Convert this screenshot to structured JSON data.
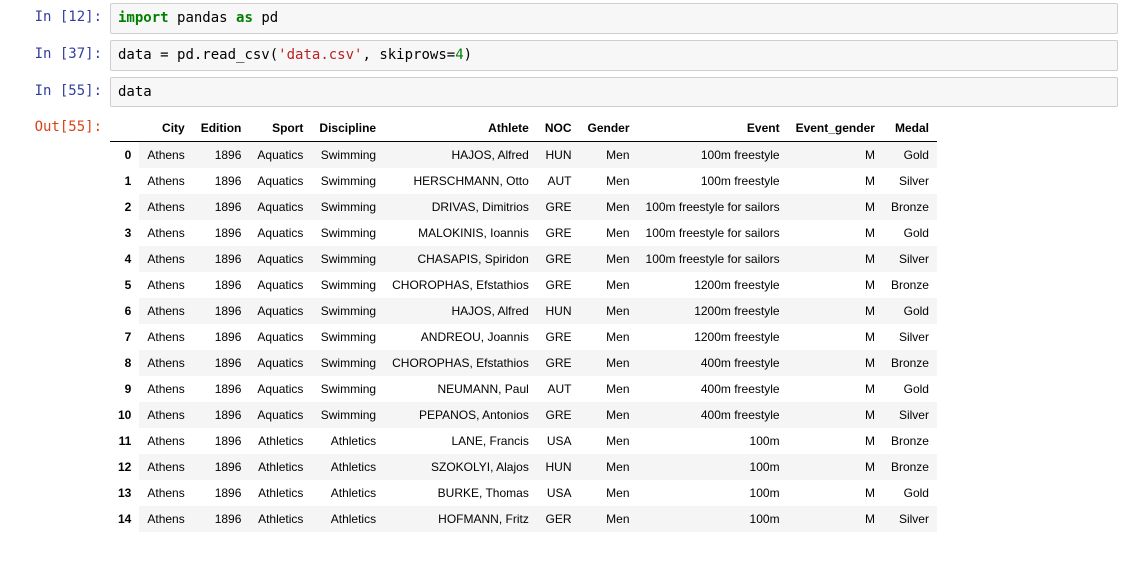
{
  "cells": [
    {
      "prompt_in": "In [12]:",
      "code_html": "<span class=\"kw-import\">import</span> <span class=\"ident\">pandas</span> <span class=\"kw-as\">as</span> <span class=\"ident\">pd</span>"
    },
    {
      "prompt_in": "In [37]:",
      "code_html": "<span class=\"ident\">data</span> = <span class=\"ident\">pd.read_csv</span>(<span class=\"str\">'data.csv'</span>, <span class=\"ident\">skiprows</span>=<span class=\"num\">4</span>)"
    },
    {
      "prompt_in": "In [55]:",
      "code_html": "<span class=\"ident\">data</span>",
      "prompt_out": "Out[55]:",
      "has_output": true
    }
  ],
  "dataframe": {
    "columns": [
      "City",
      "Edition",
      "Sport",
      "Discipline",
      "Athlete",
      "NOC",
      "Gender",
      "Event",
      "Event_gender",
      "Medal"
    ],
    "index": [
      "0",
      "1",
      "2",
      "3",
      "4",
      "5",
      "6",
      "7",
      "8",
      "9",
      "10",
      "11",
      "12",
      "13",
      "14"
    ],
    "rows": [
      [
        "Athens",
        "1896",
        "Aquatics",
        "Swimming",
        "HAJOS, Alfred",
        "HUN",
        "Men",
        "100m freestyle",
        "M",
        "Gold"
      ],
      [
        "Athens",
        "1896",
        "Aquatics",
        "Swimming",
        "HERSCHMANN, Otto",
        "AUT",
        "Men",
        "100m freestyle",
        "M",
        "Silver"
      ],
      [
        "Athens",
        "1896",
        "Aquatics",
        "Swimming",
        "DRIVAS, Dimitrios",
        "GRE",
        "Men",
        "100m freestyle for sailors",
        "M",
        "Bronze"
      ],
      [
        "Athens",
        "1896",
        "Aquatics",
        "Swimming",
        "MALOKINIS, Ioannis",
        "GRE",
        "Men",
        "100m freestyle for sailors",
        "M",
        "Gold"
      ],
      [
        "Athens",
        "1896",
        "Aquatics",
        "Swimming",
        "CHASAPIS, Spiridon",
        "GRE",
        "Men",
        "100m freestyle for sailors",
        "M",
        "Silver"
      ],
      [
        "Athens",
        "1896",
        "Aquatics",
        "Swimming",
        "CHOROPHAS, Efstathios",
        "GRE",
        "Men",
        "1200m freestyle",
        "M",
        "Bronze"
      ],
      [
        "Athens",
        "1896",
        "Aquatics",
        "Swimming",
        "HAJOS, Alfred",
        "HUN",
        "Men",
        "1200m freestyle",
        "M",
        "Gold"
      ],
      [
        "Athens",
        "1896",
        "Aquatics",
        "Swimming",
        "ANDREOU, Joannis",
        "GRE",
        "Men",
        "1200m freestyle",
        "M",
        "Silver"
      ],
      [
        "Athens",
        "1896",
        "Aquatics",
        "Swimming",
        "CHOROPHAS, Efstathios",
        "GRE",
        "Men",
        "400m freestyle",
        "M",
        "Bronze"
      ],
      [
        "Athens",
        "1896",
        "Aquatics",
        "Swimming",
        "NEUMANN, Paul",
        "AUT",
        "Men",
        "400m freestyle",
        "M",
        "Gold"
      ],
      [
        "Athens",
        "1896",
        "Aquatics",
        "Swimming",
        "PEPANOS, Antonios",
        "GRE",
        "Men",
        "400m freestyle",
        "M",
        "Silver"
      ],
      [
        "Athens",
        "1896",
        "Athletics",
        "Athletics",
        "LANE, Francis",
        "USA",
        "Men",
        "100m",
        "M",
        "Bronze"
      ],
      [
        "Athens",
        "1896",
        "Athletics",
        "Athletics",
        "SZOKOLYI, Alajos",
        "HUN",
        "Men",
        "100m",
        "M",
        "Bronze"
      ],
      [
        "Athens",
        "1896",
        "Athletics",
        "Athletics",
        "BURKE, Thomas",
        "USA",
        "Men",
        "100m",
        "M",
        "Gold"
      ],
      [
        "Athens",
        "1896",
        "Athletics",
        "Athletics",
        "HOFMANN, Fritz",
        "GER",
        "Men",
        "100m",
        "M",
        "Silver"
      ]
    ]
  }
}
